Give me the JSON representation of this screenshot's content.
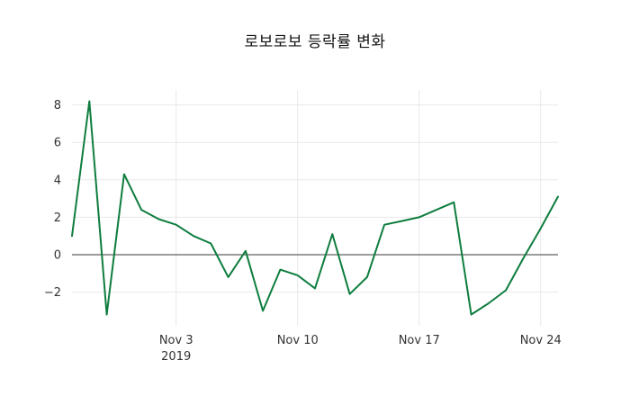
{
  "title": "로보로보 등락률 변화",
  "chart_data": {
    "type": "line",
    "title": "로보로보 등락률 변화",
    "series_name": "등락률",
    "line_color": "#0e7d3e",
    "grid_color": "#e8e8e8",
    "zero_line_color": "#3a3a3a",
    "background_color": "#ffffff",
    "grid": true,
    "legend": false,
    "ylim": [
      -3.8,
      8.8
    ],
    "y_ticks": [
      8,
      6,
      4,
      2,
      0,
      -2
    ],
    "x_tick_labels": [
      {
        "index": 6,
        "label": "Nov 3",
        "sublabel": "2019"
      },
      {
        "index": 13,
        "label": "Nov 10",
        "sublabel": ""
      },
      {
        "index": 20,
        "label": "Nov 17",
        "sublabel": ""
      },
      {
        "index": 27,
        "label": "Nov 24",
        "sublabel": ""
      }
    ],
    "dates": [
      "2019-10-28",
      "2019-10-29",
      "2019-10-30",
      "2019-10-31",
      "2019-11-01",
      "2019-11-02",
      "2019-11-03",
      "2019-11-04",
      "2019-11-05",
      "2019-11-06",
      "2019-11-07",
      "2019-11-08",
      "2019-11-09",
      "2019-11-10",
      "2019-11-11",
      "2019-11-12",
      "2019-11-13",
      "2019-11-14",
      "2019-11-15",
      "2019-11-16",
      "2019-11-17",
      "2019-11-18",
      "2019-11-19",
      "2019-11-20",
      "2019-11-21",
      "2019-11-22",
      "2019-11-23",
      "2019-11-24",
      "2019-11-25"
    ],
    "values": [
      1.0,
      8.2,
      -3.2,
      4.3,
      2.4,
      1.9,
      1.6,
      1.0,
      0.6,
      -1.2,
      0.2,
      -3.0,
      -0.8,
      -1.1,
      -1.8,
      1.1,
      -2.1,
      -1.2,
      1.6,
      1.8,
      2.0,
      2.4,
      2.8,
      -3.2,
      -2.6,
      -1.9,
      -0.2,
      1.4,
      3.1
    ]
  }
}
